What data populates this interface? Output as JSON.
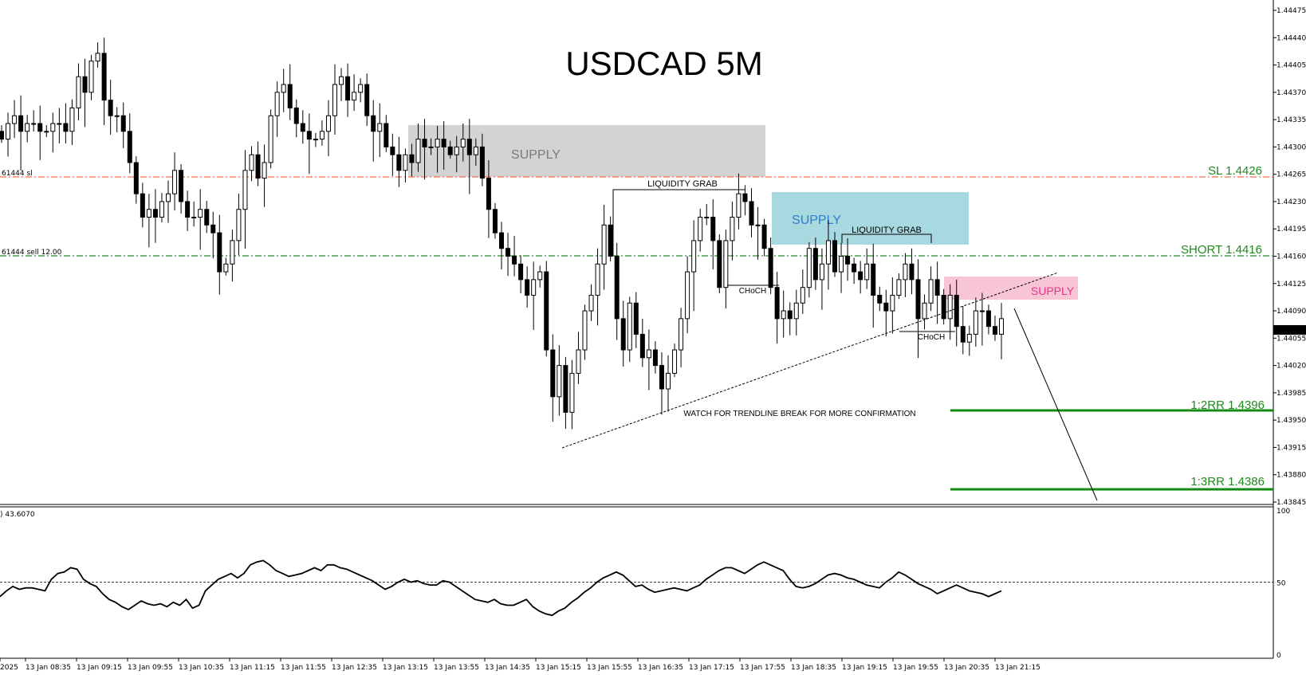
{
  "chart_data": [
    {
      "type": "candlestick",
      "title": "USDCAD 5M",
      "ylim": [
        1.4384,
        1.4448
      ],
      "y_ticks": [
        "1.44475",
        "1.44440",
        "1.44405",
        "1.44370",
        "1.44335",
        "1.44300",
        "1.44265",
        "1.44230",
        "1.44195",
        "1.44160",
        "1.44125",
        "1.44090",
        "1.44055",
        "1.44020",
        "1.43985",
        "1.43950",
        "1.43915",
        "1.43880",
        "1.43845"
      ],
      "x_ticks": [
        "2025",
        "13 Jan 08:35",
        "13 Jan 09:15",
        "13 Jan 09:55",
        "13 Jan 10:35",
        "13 Jan 11:15",
        "13 Jan 11:55",
        "13 Jan 12:35",
        "13 Jan 13:15",
        "13 Jan 13:55",
        "13 Jan 14:35",
        "13 Jan 15:15",
        "13 Jan 15:55",
        "13 Jan 16:35",
        "13 Jan 17:15",
        "13 Jan 17:55",
        "13 Jan 18:35",
        "13 Jan 19:15",
        "13 Jan 19:55",
        "13 Jan 20:35",
        "13 Jan 21:15"
      ],
      "current_price": "1.44063",
      "closes": [
        1.4431,
        1.4433,
        1.4434,
        1.4432,
        1.4433,
        1.4433,
        1.4432,
        1.4432,
        1.4433,
        1.4433,
        1.4432,
        1.4435,
        1.4439,
        1.4437,
        1.4441,
        1.4442,
        1.4436,
        1.4434,
        1.4434,
        1.4432,
        1.4428,
        1.4424,
        1.4421,
        1.4422,
        1.4421,
        1.4423,
        1.4424,
        1.4427,
        1.4423,
        1.4421,
        1.4421,
        1.4422,
        1.442,
        1.4419,
        1.4414,
        1.4415,
        1.4418,
        1.4422,
        1.4427,
        1.4429,
        1.4426,
        1.4428,
        1.4434,
        1.4437,
        1.4438,
        1.4435,
        1.4433,
        1.4432,
        1.4431,
        1.4431,
        1.4432,
        1.4434,
        1.4438,
        1.4439,
        1.4436,
        1.4437,
        1.4438,
        1.4434,
        1.4432,
        1.4433,
        1.443,
        1.4429,
        1.4427,
        1.4429,
        1.4428,
        1.4431,
        1.443,
        1.443,
        1.4431,
        1.443,
        1.4429,
        1.443,
        1.4431,
        1.4429,
        1.443,
        1.4426,
        1.4422,
        1.4419,
        1.4417,
        1.4416,
        1.4415,
        1.4413,
        1.4411,
        1.4413,
        1.4414,
        1.4404,
        1.4398,
        1.4402,
        1.4396,
        1.4401,
        1.4404,
        1.4409,
        1.4411,
        1.4415,
        1.442,
        1.4416,
        1.4408,
        1.4404,
        1.441,
        1.4406,
        1.4403,
        1.4404,
        1.4402,
        1.4399,
        1.4401,
        1.4404,
        1.4408,
        1.4414,
        1.4418,
        1.4421,
        1.4421,
        1.4418,
        1.4412,
        1.4418,
        1.4421,
        1.4424,
        1.4423,
        1.442,
        1.442,
        1.4417,
        1.4412,
        1.4408,
        1.4409,
        1.4408,
        1.441,
        1.4412,
        1.4417,
        1.4413,
        1.4415,
        1.4418,
        1.4414,
        1.4416,
        1.4415,
        1.4414,
        1.4413,
        1.4415,
        1.4411,
        1.441,
        1.4409,
        1.4411,
        1.4413,
        1.4415,
        1.4413,
        1.4408,
        1.441,
        1.4413,
        1.4411,
        1.4408,
        1.4411,
        1.4407,
        1.4405,
        1.4406,
        1.4409,
        1.4409,
        1.4407,
        1.4406,
        1.4408
      ]
    },
    {
      "type": "line",
      "indicator_value": "43.6070",
      "ylim": [
        0,
        100
      ],
      "y_ticks": [
        "100",
        "50",
        "0"
      ],
      "level": 50,
      "values": [
        40,
        44,
        47,
        45,
        46,
        46,
        45,
        44,
        52,
        56,
        57,
        60,
        59,
        52,
        49,
        47,
        42,
        38,
        36,
        33,
        31,
        34,
        37,
        35,
        34,
        35,
        33,
        36,
        34,
        38,
        32,
        34,
        44,
        48,
        52,
        54,
        56,
        53,
        56,
        62,
        64,
        65,
        62,
        58,
        56,
        54,
        55,
        56,
        58,
        60,
        58,
        62,
        62,
        60,
        59,
        57,
        55,
        53,
        51,
        48,
        45,
        47,
        50,
        52,
        50,
        51,
        49,
        48,
        48,
        51,
        50,
        47,
        44,
        41,
        38,
        37,
        36,
        38,
        35,
        34,
        34,
        36,
        38,
        33,
        30,
        28,
        27,
        30,
        32,
        36,
        39,
        43,
        46,
        50,
        53,
        55,
        57,
        55,
        51,
        47,
        48,
        45,
        43,
        44,
        45,
        46,
        45,
        44,
        46,
        48,
        52,
        55,
        58,
        60,
        60,
        58,
        56,
        59,
        62,
        64,
        62,
        60,
        58,
        52,
        47,
        46,
        47,
        49,
        52,
        55,
        56,
        55,
        53,
        52,
        50,
        48,
        47,
        46,
        50,
        53,
        57,
        55,
        52,
        49,
        47,
        45,
        42,
        44,
        46,
        48,
        46,
        44,
        43,
        42,
        40,
        42,
        44
      ]
    }
  ],
  "annotations": {
    "supply_1": "SUPPLY",
    "supply_2": "SUPPLY",
    "supply_3": "SUPPLY",
    "liquidity_grab_1": "LIQUIDITY GRAB",
    "liquidity_grab_2": "LIQUIDITY GRAB",
    "choch_1": "CHoCH",
    "choch_2": "CHoCH",
    "trendline_note": "WATCH FOR TRENDLINE BREAK FOR MORE CONFIRMATION",
    "sl_label": "SL 1.4426",
    "short_label": "SHORT 1.4416",
    "rr2_label": "1:2RR 1.4396",
    "rr3_label": "1:3RR 1.4386",
    "sl_order_text": "61444 sl",
    "sell_order_text": "61444 sell 12.00"
  },
  "levels": {
    "sl": 1.4426,
    "short": 1.4416,
    "rr2": 1.4396,
    "rr3": 1.4386
  },
  "colors": {
    "sl_line": "#ff6a4a",
    "short_line": "#2e8b2e",
    "target_line": "#138a13",
    "label_green": "#1e8a1e",
    "supply_gray": "#d3d3d3",
    "supply_gray_text": "#7a7a7a",
    "supply_blue": "#a8d8e0",
    "supply_blue_text": "#2f7fd0",
    "supply_pink": "#f8c5d4",
    "supply_pink_text": "#e0348a"
  }
}
